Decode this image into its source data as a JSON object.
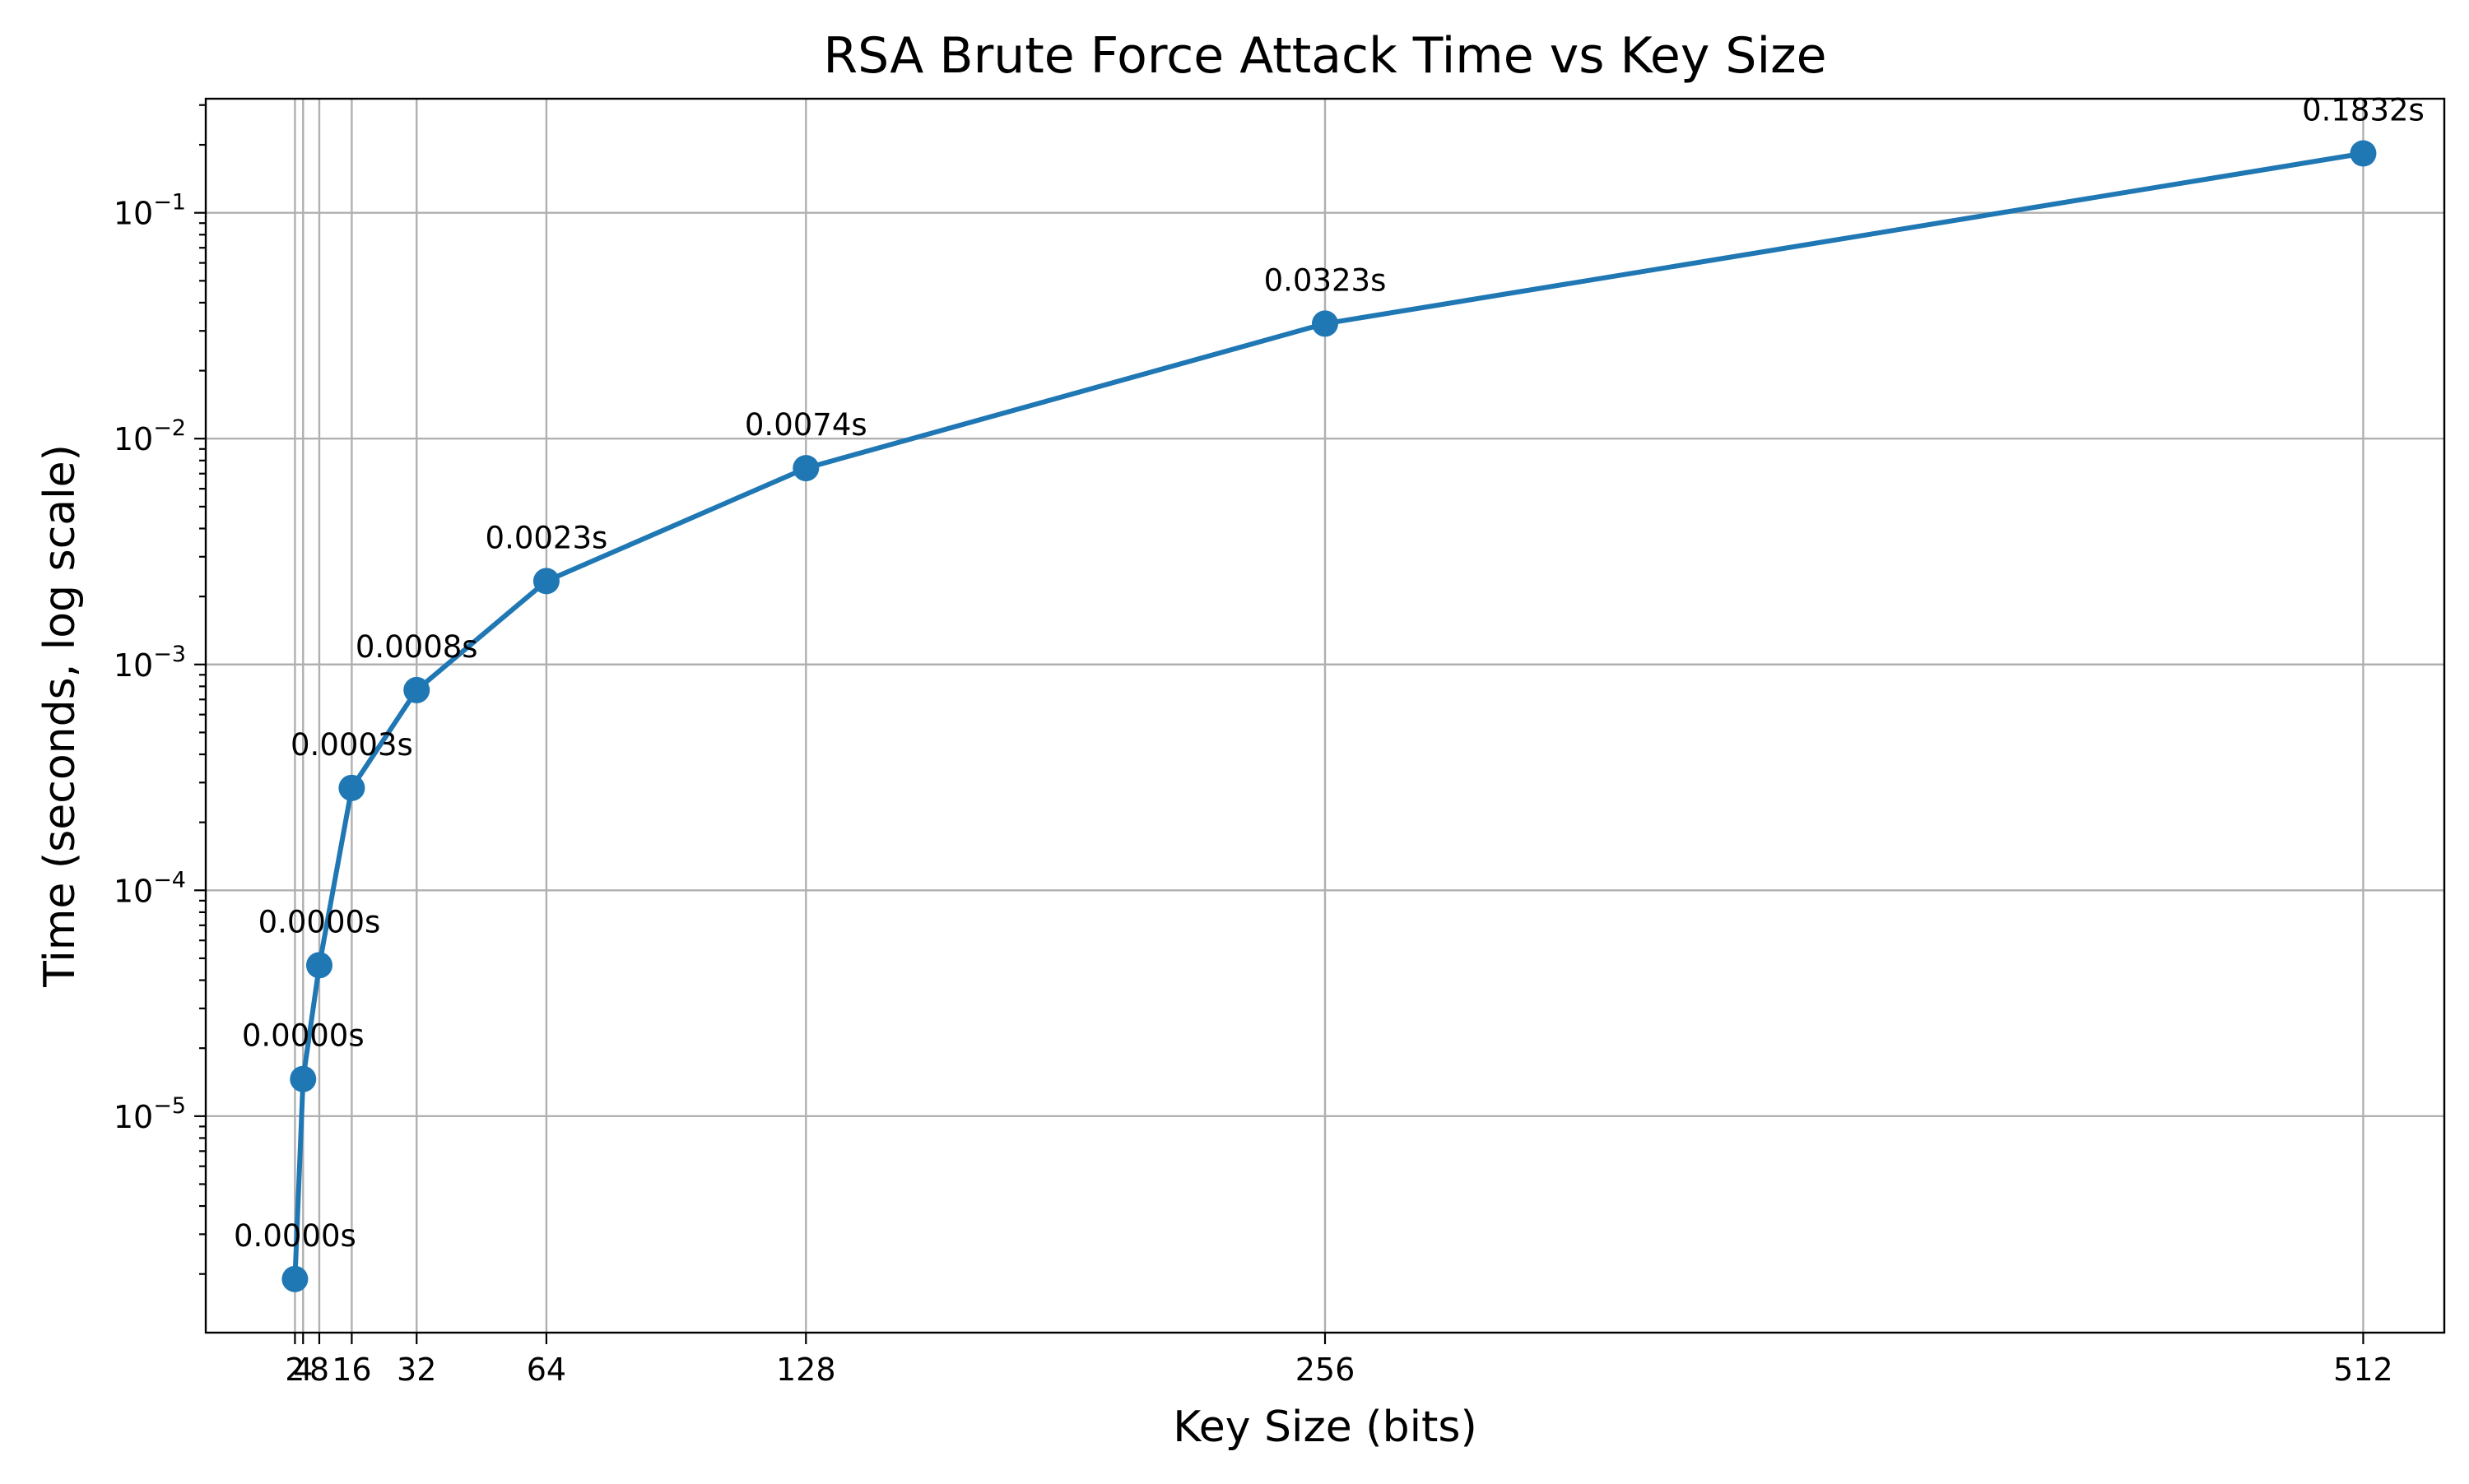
{
  "chart_data": {
    "type": "line",
    "title": "RSA Brute Force Attack Time vs Key Size",
    "xlabel": "Key Size (bits)",
    "ylabel": "Time (seconds, log scale)",
    "x_scale": "linear",
    "y_scale": "log",
    "xlim": [
      -20,
      532
    ],
    "ylim": [
      1.1e-06,
      0.32
    ],
    "grid": true,
    "legend": "none",
    "x_ticks": [
      2,
      4,
      8,
      16,
      32,
      64,
      128,
      256,
      512
    ],
    "x_tick_labels": [
      "2",
      "4",
      "8",
      "16",
      "32",
      "64",
      "128",
      "256",
      "512"
    ],
    "y_ticks": [
      1e-05,
      0.0001,
      0.001,
      0.01,
      0.1
    ],
    "y_tick_labels": [
      {
        "base": "10",
        "exp": "−5"
      },
      {
        "base": "10",
        "exp": "−4"
      },
      {
        "base": "10",
        "exp": "−3"
      },
      {
        "base": "10",
        "exp": "−2"
      },
      {
        "base": "10",
        "exp": "−1"
      }
    ],
    "series": [
      {
        "color": "#1f77b4",
        "marker": "circle",
        "x": [
          2,
          4,
          8,
          16,
          32,
          64,
          128,
          256,
          512
        ],
        "y": [
          1.9e-06,
          1.46e-05,
          4.66e-05,
          0.000284,
          0.00077,
          0.00234,
          0.0074,
          0.0323,
          0.1832
        ],
        "labels": [
          "0.0000s",
          "0.0000s",
          "0.0000s",
          "0.0003s",
          "0.0008s",
          "0.0023s",
          "0.0074s",
          "0.0323s",
          "0.1832s"
        ]
      }
    ]
  }
}
